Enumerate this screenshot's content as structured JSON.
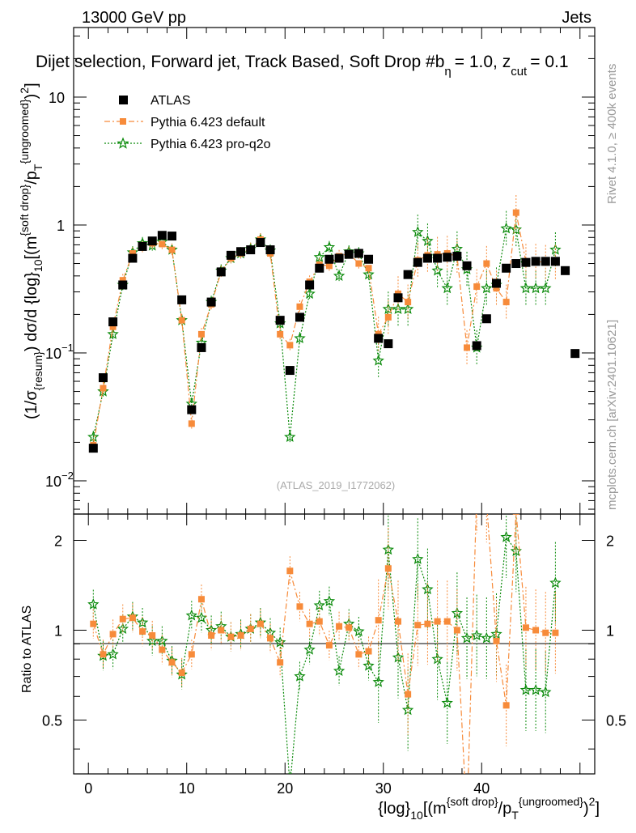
{
  "header": {
    "energy_label": "13000 GeV pp",
    "category_label": "Jets",
    "title": "Dijet selection, Forward jet, Track Based, Soft Drop #b",
    "title_tail": "= 1.0, z",
    "title_sub_eta": "η",
    "title_sub_cut": "cut",
    "title_end": "= 0.1"
  },
  "side_text": {
    "rivet": "Rivet 4.1.0, ≥ 400k events",
    "mcplots": "mcplots.cern.ch [arXiv:2401.10621]"
  },
  "watermark": "(ATLAS_2019_I1772062)",
  "main_ylabel": {
    "p1": "(1/σ",
    "p1_sub": "{resum}",
    "p2": ") dσ/d {log}",
    "p2_sub": "10",
    "p3": "[(m",
    "p3_sup": "{soft drop}",
    "p4": "/p",
    "p4_sub": "T",
    "p4_sup": "{ungroomed}",
    "p5": ")",
    "p5_sup": "2",
    "p6": "]"
  },
  "ratio_ylabel": "Ratio to ATLAS",
  "xlabel": {
    "p1": "{log}",
    "p1_sub": "10",
    "p2": "[(m",
    "p2_sup": "{soft drop}",
    "p3": "/p",
    "p3_sub": "T",
    "p3_sup": "{ungroomed}",
    "p4": ")",
    "p4_sup": "2",
    "p5": "]"
  },
  "legend": [
    {
      "name": "ATLAS",
      "color": "#000000"
    },
    {
      "name": "Pythia 6.423 default",
      "color": "#f78b3a"
    },
    {
      "name": "Pythia 6.423 pro-q2o",
      "color": "#0a8a0a"
    }
  ],
  "chart_data": {
    "type": "scatter",
    "title": "Dijet selection, Forward jet, Track Based, Soft Drop β = 1.0, z_cut = 0.1",
    "xlabel": "{log}_10[(m^{soft drop}/p_T^{ungroomed})^2]",
    "ylabel": "(1/σ_resum) dσ/d {log}_10[(m^{soft drop}/p_T^{ungroomed})^2]",
    "xlim": [
      -1.5,
      51.5
    ],
    "ylim": [
      0.0055,
      35
    ],
    "yscale": "log",
    "x": [
      0.5,
      1.5,
      2.5,
      3.5,
      4.5,
      5.5,
      6.5,
      7.5,
      8.5,
      9.5,
      10.5,
      11.5,
      12.5,
      13.5,
      14.5,
      15.5,
      16.5,
      17.5,
      18.5,
      19.5,
      20.5,
      21.5,
      22.5,
      23.5,
      24.5,
      25.5,
      26.5,
      27.5,
      28.5,
      29.5,
      30.5,
      31.5,
      32.5,
      33.5,
      34.5,
      35.5,
      36.5,
      37.5,
      38.5,
      39.5,
      40.5,
      41.5,
      42.5,
      43.5,
      44.5,
      45.5,
      46.5,
      47.5,
      48.5,
      49.5,
      50.5
    ],
    "series": [
      {
        "name": "ATLAS",
        "values": [
          0.018,
          0.064,
          0.175,
          0.34,
          0.55,
          0.68,
          0.75,
          0.83,
          0.82,
          0.26,
          0.036,
          0.11,
          0.25,
          0.43,
          0.58,
          0.62,
          0.64,
          0.73,
          0.64,
          0.18,
          0.073,
          0.19,
          0.34,
          0.46,
          0.54,
          0.55,
          0.59,
          0.6,
          0.54,
          0.13,
          0.118,
          0.27,
          0.41,
          0.51,
          0.55,
          0.55,
          0.56,
          0.57,
          0.48,
          0.114,
          0.185,
          0.35,
          0.46,
          0.5,
          0.51,
          0.52,
          0.52,
          0.52,
          0.44,
          0.099,
          null
        ]
      },
      {
        "name": "Pythia 6.423 default",
        "values": [
          0.019,
          0.053,
          0.16,
          0.37,
          0.6,
          0.67,
          0.72,
          0.71,
          0.64,
          0.18,
          0.028,
          0.14,
          0.24,
          0.43,
          0.55,
          0.6,
          0.65,
          0.77,
          0.6,
          0.14,
          0.115,
          0.23,
          0.36,
          0.49,
          0.48,
          0.57,
          0.6,
          0.5,
          0.46,
          0.14,
          0.19,
          0.29,
          0.25,
          0.53,
          0.58,
          0.59,
          0.6,
          0.57,
          0.11,
          0.33,
          0.5,
          0.32,
          0.25,
          1.25,
          0.52,
          0.52,
          0.51,
          0.51,
          null,
          null,
          null
        ]
      },
      {
        "name": "Pythia 6.423 pro-q2o",
        "values": [
          0.022,
          0.05,
          0.14,
          0.34,
          0.61,
          0.72,
          0.69,
          0.74,
          0.64,
          0.18,
          0.04,
          0.12,
          0.25,
          0.44,
          0.55,
          0.6,
          0.65,
          0.77,
          0.63,
          0.17,
          0.022,
          0.13,
          0.29,
          0.56,
          0.67,
          0.4,
          0.62,
          0.6,
          0.41,
          0.087,
          0.22,
          0.22,
          0.22,
          0.88,
          0.75,
          0.44,
          0.32,
          0.65,
          0.45,
          0.11,
          0.32,
          0.34,
          0.94,
          0.92,
          0.32,
          0.32,
          0.32,
          0.64,
          null,
          null,
          null
        ]
      }
    ],
    "ratio": {
      "ylabel": "Ratio to ATLAS",
      "ylim": [
        0.33,
        2.45
      ],
      "yscale": "log",
      "reference": 1,
      "series": [
        {
          "name": "Pythia 6.423 default",
          "values": [
            1.05,
            0.83,
            0.97,
            1.09,
            1.1,
            0.99,
            0.96,
            0.86,
            0.78,
            0.72,
            0.83,
            1.27,
            0.96,
            1.0,
            0.95,
            0.96,
            1.01,
            1.05,
            0.94,
            0.78,
            1.58,
            1.2,
            1.05,
            1.07,
            0.89,
            1.03,
            1.02,
            0.83,
            0.85,
            1.08,
            1.61,
            1.07,
            0.61,
            1.04,
            1.05,
            1.07,
            1.07,
            1.0,
            0.23,
            2.9,
            2.7,
            0.92,
            0.56,
            2.5,
            1.02,
            1.0,
            0.98,
            0.98,
            null,
            null,
            null
          ]
        },
        {
          "name": "Pythia 6.423 pro-q2o",
          "values": [
            1.22,
            0.82,
            0.83,
            1.01,
            1.11,
            1.06,
            0.92,
            0.92,
            0.79,
            0.71,
            1.12,
            1.1,
            1.0,
            1.03,
            0.95,
            0.97,
            1.01,
            1.06,
            0.98,
            0.91,
            0.3,
            0.7,
            0.86,
            1.21,
            1.25,
            0.73,
            1.05,
            0.99,
            0.76,
            0.67,
            1.86,
            0.81,
            0.54,
            1.73,
            1.37,
            0.8,
            0.57,
            1.14,
            0.94,
            0.96,
            0.94,
            0.97,
            2.05,
            1.84,
            0.63,
            0.63,
            0.62,
            1.44,
            null,
            null,
            null
          ]
        }
      ]
    }
  }
}
